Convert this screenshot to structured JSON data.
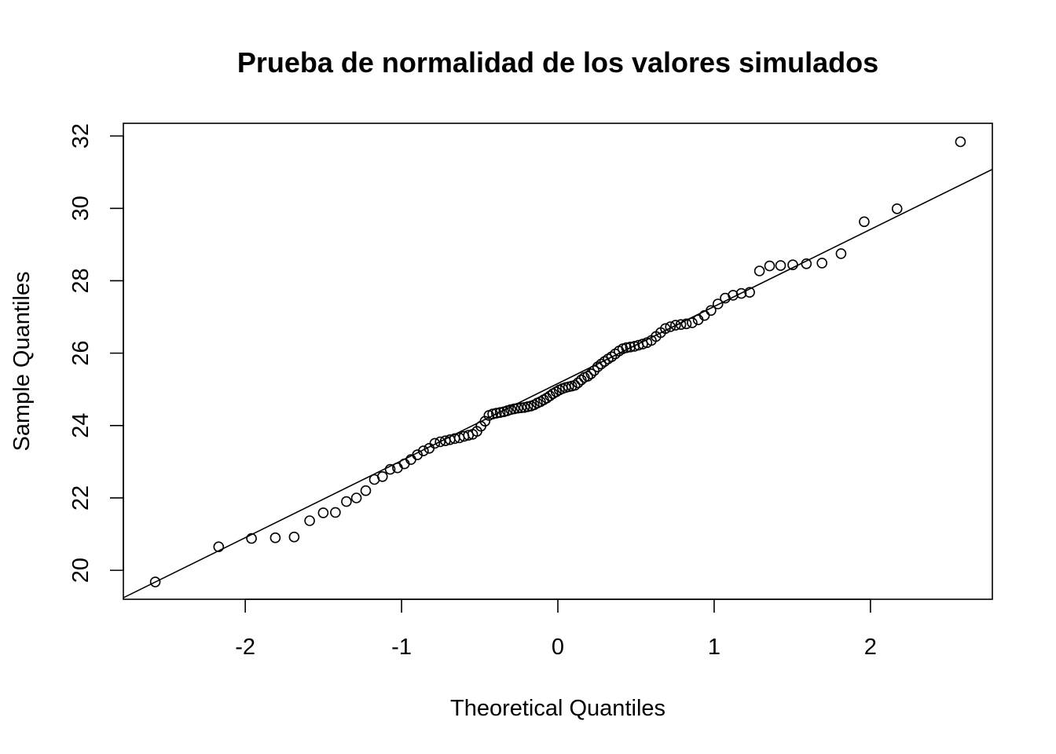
{
  "chart_data": {
    "type": "scatter",
    "title": "Prueba de normalidad de los valores simulados",
    "xlabel": "Theoretical Quantiles",
    "ylabel": "Sample Quantiles",
    "xlim": [
      -2.78,
      2.78
    ],
    "ylim": [
      19.2,
      32.35
    ],
    "xticks": [
      -2,
      -1,
      0,
      1,
      2
    ],
    "xtick_labels": [
      "-2",
      "-1",
      "0",
      "1",
      "2"
    ],
    "yticks": [
      20,
      22,
      24,
      26,
      28,
      30,
      32
    ],
    "ytick_labels": [
      "20",
      "22",
      "24",
      "26",
      "28",
      "30",
      "32"
    ],
    "grid": false,
    "legend": "none",
    "reference_line": {
      "slope": 2.129,
      "intercept": 25.16
    },
    "series": [
      {
        "marker": "open-circle",
        "color": "#000000",
        "points": [
          [
            -2.576,
            19.68
          ],
          [
            -2.17,
            20.65
          ],
          [
            -1.96,
            20.88
          ],
          [
            -1.808,
            20.9
          ],
          [
            -1.687,
            20.92
          ],
          [
            -1.588,
            21.37
          ],
          [
            -1.501,
            21.59
          ],
          [
            -1.423,
            21.6
          ],
          [
            -1.353,
            21.9
          ],
          [
            -1.289,
            22.0
          ],
          [
            -1.229,
            22.2
          ],
          [
            -1.174,
            22.51
          ],
          [
            -1.122,
            22.59
          ],
          [
            -1.073,
            22.79
          ],
          [
            -1.026,
            22.83
          ],
          [
            -0.982,
            22.94
          ],
          [
            -0.94,
            23.06
          ],
          [
            -0.899,
            23.19
          ],
          [
            -0.86,
            23.3
          ],
          [
            -0.823,
            23.37
          ],
          [
            -0.787,
            23.51
          ],
          [
            -0.753,
            23.55
          ],
          [
            -0.72,
            23.58
          ],
          [
            -0.69,
            23.61
          ],
          [
            -0.66,
            23.64
          ],
          [
            -0.63,
            23.66
          ],
          [
            -0.6,
            23.7
          ],
          [
            -0.572,
            23.73
          ],
          [
            -0.545,
            23.76
          ],
          [
            -0.518,
            23.84
          ],
          [
            -0.492,
            23.98
          ],
          [
            -0.466,
            24.12
          ],
          [
            -0.441,
            24.28
          ],
          [
            -0.417,
            24.32
          ],
          [
            -0.393,
            24.34
          ],
          [
            -0.369,
            24.36
          ],
          [
            -0.346,
            24.38
          ],
          [
            -0.323,
            24.41
          ],
          [
            -0.301,
            24.44
          ],
          [
            -0.279,
            24.46
          ],
          [
            -0.257,
            24.48
          ],
          [
            -0.235,
            24.49
          ],
          [
            -0.214,
            24.5
          ],
          [
            -0.193,
            24.52
          ],
          [
            -0.172,
            24.54
          ],
          [
            -0.152,
            24.57
          ],
          [
            -0.131,
            24.62
          ],
          [
            -0.111,
            24.66
          ],
          [
            -0.091,
            24.71
          ],
          [
            -0.071,
            24.76
          ],
          [
            -0.051,
            24.82
          ],
          [
            -0.031,
            24.88
          ],
          [
            -0.011,
            24.93
          ],
          [
            0.009,
            24.98
          ],
          [
            0.029,
            25.02
          ],
          [
            0.049,
            25.05
          ],
          [
            0.069,
            25.07
          ],
          [
            0.089,
            25.09
          ],
          [
            0.109,
            25.11
          ],
          [
            0.129,
            25.18
          ],
          [
            0.15,
            25.26
          ],
          [
            0.17,
            25.33
          ],
          [
            0.191,
            25.36
          ],
          [
            0.212,
            25.43
          ],
          [
            0.233,
            25.52
          ],
          [
            0.255,
            25.62
          ],
          [
            0.277,
            25.7
          ],
          [
            0.299,
            25.77
          ],
          [
            0.321,
            25.84
          ],
          [
            0.344,
            25.9
          ],
          [
            0.367,
            25.98
          ],
          [
            0.391,
            26.06
          ],
          [
            0.415,
            26.12
          ],
          [
            0.439,
            26.15
          ],
          [
            0.464,
            26.17
          ],
          [
            0.49,
            26.19
          ],
          [
            0.516,
            26.22
          ],
          [
            0.543,
            26.25
          ],
          [
            0.57,
            26.29
          ],
          [
            0.598,
            26.35
          ],
          [
            0.628,
            26.46
          ],
          [
            0.658,
            26.57
          ],
          [
            0.688,
            26.68
          ],
          [
            0.72,
            26.73
          ],
          [
            0.753,
            26.77
          ],
          [
            0.787,
            26.79
          ],
          [
            0.822,
            26.81
          ],
          [
            0.859,
            26.84
          ],
          [
            0.898,
            26.92
          ],
          [
            0.938,
            27.04
          ],
          [
            0.98,
            27.18
          ],
          [
            1.024,
            27.36
          ],
          [
            1.071,
            27.52
          ],
          [
            1.121,
            27.6
          ],
          [
            1.174,
            27.65
          ],
          [
            1.227,
            27.68
          ],
          [
            1.29,
            28.27
          ],
          [
            1.355,
            28.41
          ],
          [
            1.425,
            28.42
          ],
          [
            1.503,
            28.44
          ],
          [
            1.59,
            28.47
          ],
          [
            1.69,
            28.49
          ],
          [
            1.812,
            28.75
          ],
          [
            1.96,
            29.63
          ],
          [
            2.17,
            29.99
          ],
          [
            2.576,
            31.84
          ]
        ]
      }
    ]
  }
}
